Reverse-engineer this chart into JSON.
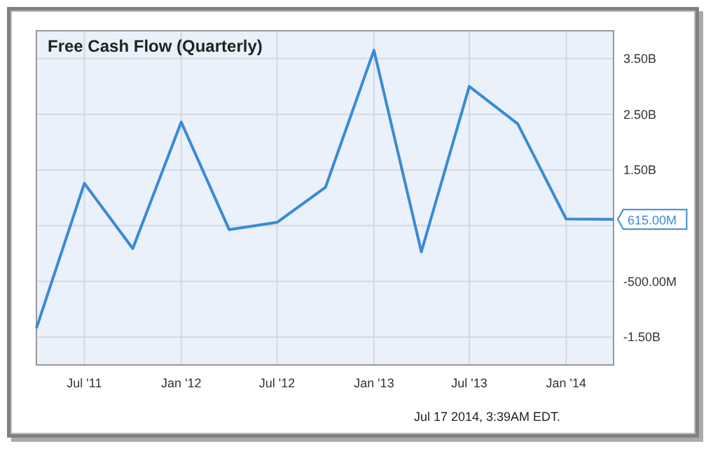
{
  "chart_data": {
    "type": "line",
    "title": "Free Cash Flow (Quarterly)",
    "x": [
      "2011-04-01",
      "2011-07-01",
      "2011-10-01",
      "2012-01-01",
      "2012-04-01",
      "2012-07-01",
      "2012-10-01",
      "2013-01-01",
      "2013-04-01",
      "2013-07-01",
      "2013-10-01",
      "2014-01-01",
      "2014-04-01"
    ],
    "series": [
      {
        "color": "#3a8ad6",
        "values": [
          -1340000000,
          1260000000,
          90000000,
          2360000000,
          430000000,
          560000000,
          1190000000,
          3650000000,
          30000000,
          3000000000,
          2330000000,
          620000000,
          615000000
        ]
      }
    ],
    "xlim": [
      "2011-04-01",
      "2014-04-01"
    ],
    "xticks": [
      {
        "value": "2011-07-01",
        "label": "Jul '11"
      },
      {
        "value": "2012-01-01",
        "label": "Jan '12"
      },
      {
        "value": "2012-07-01",
        "label": "Jul '12"
      },
      {
        "value": "2013-01-01",
        "label": "Jan '13"
      },
      {
        "value": "2013-07-01",
        "label": "Jul '13"
      },
      {
        "value": "2014-01-01",
        "label": "Jan '14"
      }
    ],
    "ylim": [
      -2000000000,
      4000000000
    ],
    "yticks": [
      {
        "value": 3500000000,
        "label": "3.50B"
      },
      {
        "value": 2500000000,
        "label": "2.50B"
      },
      {
        "value": 1500000000,
        "label": "1.50B"
      },
      {
        "value": 500000000,
        "label": null
      },
      {
        "value": -500000000,
        "label": "-500.00M"
      },
      {
        "value": -1500000000,
        "label": "-1.50B"
      }
    ],
    "grid": true,
    "marker": "none",
    "line_style": "solid",
    "annotations": [
      {
        "text": "615.00M",
        "x": "2014-04-01",
        "y": 615000000
      },
      "Jul 17 2014, 3:39AM EDT."
    ]
  }
}
